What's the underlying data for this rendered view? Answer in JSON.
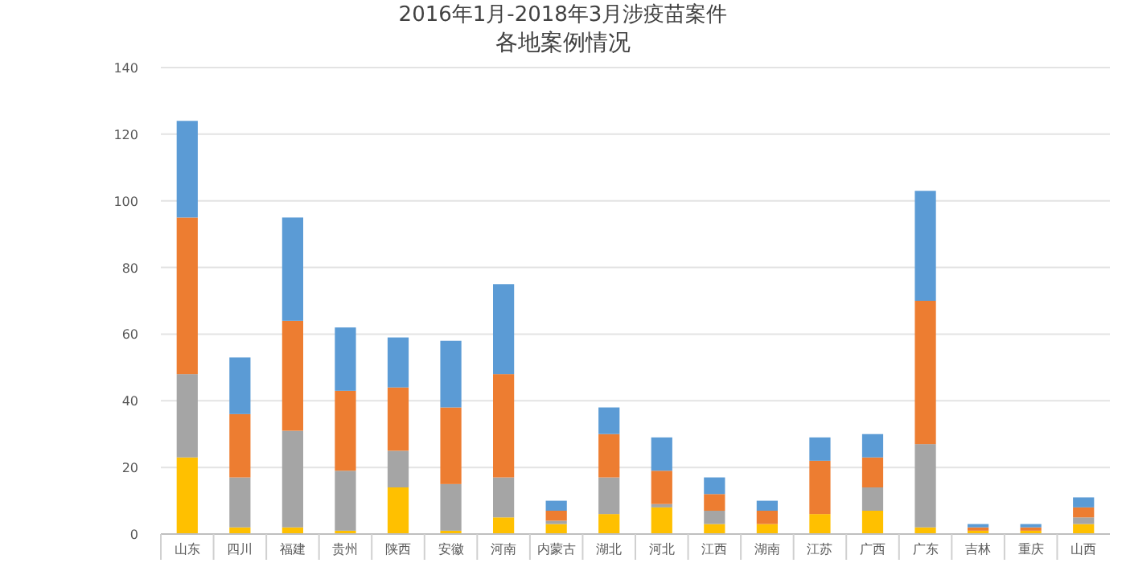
{
  "chart_data": {
    "type": "bar",
    "title": "2016年1月-2018年3月涉疫苗案件",
    "subtitle": "各地案例情况",
    "categories": [
      "山东",
      "四川",
      "福建",
      "贵州",
      "陕西",
      "安徽",
      "河南",
      "内蒙古",
      "湖北",
      "河北",
      "江西",
      "湖南",
      "江苏",
      "广西",
      "广东",
      "吉林",
      "重庆",
      "山西"
    ],
    "stacked": true,
    "series": [
      {
        "color": "#ffc000",
        "values": [
          23,
          2,
          2,
          1,
          14,
          1,
          5,
          3,
          6,
          8,
          3,
          3,
          6,
          7,
          2,
          1,
          1,
          3
        ]
      },
      {
        "color": "#a5a5a5",
        "values": [
          25,
          15,
          29,
          18,
          11,
          14,
          12,
          1,
          11,
          1,
          4,
          0,
          0,
          7,
          25,
          0,
          0,
          2
        ]
      },
      {
        "color": "#ed7d31",
        "values": [
          47,
          19,
          33,
          24,
          19,
          23,
          31,
          3,
          13,
          10,
          5,
          4,
          16,
          9,
          43,
          1,
          1,
          3
        ]
      },
      {
        "color": "#5b9bd5",
        "values": [
          29,
          17,
          31,
          19,
          15,
          20,
          27,
          3,
          8,
          10,
          5,
          3,
          7,
          7,
          33,
          1,
          1,
          3
        ]
      }
    ],
    "ylim": [
      0,
      140
    ],
    "yticks": [
      0,
      20,
      40,
      60,
      80,
      100,
      120,
      140
    ],
    "grid": "y"
  }
}
